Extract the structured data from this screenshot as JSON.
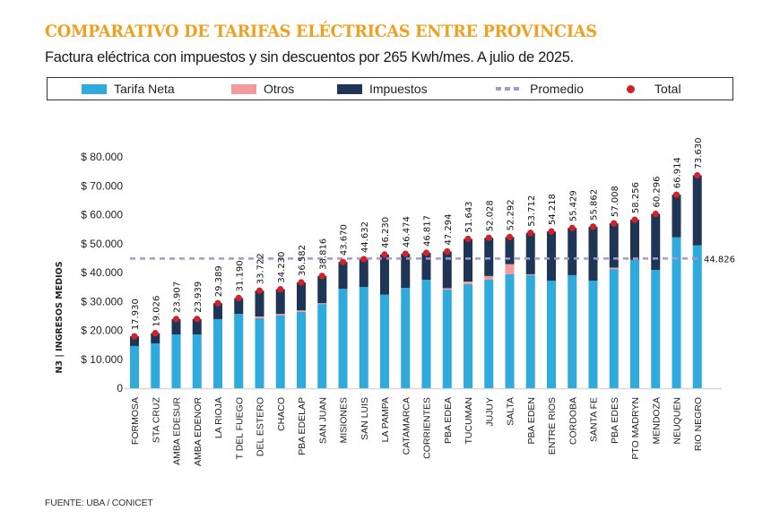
{
  "header": {
    "title": "COMPARATIVO DE TARIFAS ELÉCTRICAS ENTRE PROVINCIAS",
    "subtitle": "Factura eléctrica con impuestos y sin descuentos por 265 Kwh/mes. A julio de 2025."
  },
  "legend": [
    {
      "key": "tarifa_neta",
      "label": "Tarifa Neta",
      "color": "#2eaadc",
      "icon": "bar-swatch"
    },
    {
      "key": "otros",
      "label": "Otros",
      "color": "#f29a9e",
      "icon": "bar-swatch"
    },
    {
      "key": "impuestos",
      "label": "Impuestos",
      "color": "#1f3556",
      "icon": "bar-swatch"
    },
    {
      "key": "promedio",
      "label": "Promedio",
      "color": "#a898c8",
      "icon": "dashed-line"
    },
    {
      "key": "total",
      "label": "Total",
      "color": "#d42027",
      "icon": "dot"
    }
  ],
  "source": "FUENTE: UBA / CONICET",
  "chart_data": {
    "type": "bar",
    "stacked": true,
    "title": "COMPARATIVO DE TARIFAS ELÉCTRICAS ENTRE PROVINCIAS",
    "subtitle": "Factura eléctrica con impuestos y sin descuentos por 265 Kwh/mes. A julio de 2025.",
    "xlabel": "",
    "ylabel": "N3 | INGRESOS MEDIOS",
    "ylim": [
      0,
      80000
    ],
    "yticks": [
      0,
      10000,
      20000,
      30000,
      40000,
      50000,
      60000,
      70000,
      80000
    ],
    "ytick_labels": [
      "0",
      "$ 10.000",
      "$ 20.000",
      "$ 30.000",
      "$ 40.000",
      "$ 50.000",
      "$ 60.000",
      "$ 70.000",
      "$ 80.000"
    ],
    "grid": false,
    "legend_position": "top",
    "categories": [
      "FORMOSA",
      "STA CRUZ",
      "AMBA EDESUR",
      "AMBA EDENOR",
      "LA RIOJA",
      "T DEL FUEGO",
      "DEL ESTERO",
      "CHACO",
      "PBA EDELAP",
      "SAN JUAN",
      "MISIONES",
      "SAN LUIS",
      "LA PAMPA",
      "CATAMARCA",
      "CORRIENTES",
      "PBA EDEA",
      "TUCUMAN",
      "JUJUY",
      "SALTA",
      "PBA EDEN",
      "ENTRE RIOS",
      "CORDOBA",
      "SANTA FE",
      "PBA EDES",
      "PTO MADRYN",
      "MENDOZA",
      "NEUQUEN",
      "RIO NEGRO"
    ],
    "series": [
      {
        "name": "Tarifa Neta",
        "color": "#2eaadc",
        "values": [
          14600,
          15500,
          18600,
          18600,
          23900,
          25700,
          24200,
          25200,
          26400,
          29100,
          34400,
          35000,
          32400,
          34700,
          37500,
          34100,
          36000,
          37600,
          39400,
          39100,
          37200,
          39100,
          37200,
          41200,
          44400,
          40900,
          52200,
          49400
        ]
      },
      {
        "name": "Otros",
        "color": "#f29a9e",
        "values": [
          0,
          0,
          0,
          0,
          0,
          0,
          600,
          500,
          500,
          300,
          0,
          0,
          0,
          0,
          0,
          500,
          900,
          1200,
          3500,
          300,
          0,
          0,
          0,
          500,
          0,
          0,
          0,
          0
        ]
      },
      {
        "name": "Impuestos",
        "color": "#1f3556",
        "values": [
          3330,
          3526,
          5307,
          5339,
          5489,
          5490,
          8922,
          8530,
          9682,
          9416,
          9270,
          9632,
          13830,
          11774,
          9317,
          12694,
          14743,
          13228,
          9392,
          14312,
          17018,
          16329,
          18662,
          15308,
          13856,
          19396,
          14714,
          24230
        ]
      }
    ],
    "totals": [
      17930,
      19026,
      23907,
      23939,
      29389,
      31190,
      33722,
      34230,
      36582,
      38816,
      43670,
      44632,
      46230,
      46474,
      46817,
      47294,
      51643,
      52028,
      52292,
      53712,
      54218,
      55429,
      55862,
      57008,
      58256,
      60296,
      66914,
      73630
    ],
    "total_labels": [
      "17.930",
      "19.026",
      "23.907",
      "23.939",
      "29.389",
      "31.190",
      "33.722",
      "34.230",
      "36.582",
      "38.816",
      "43.670",
      "44.632",
      "46.230",
      "46.474",
      "46.817",
      "47.294",
      "51.643",
      "52.028",
      "52.292",
      "53.712",
      "54.218",
      "55.429",
      "55.862",
      "57.008",
      "58.256",
      "60.296",
      "66.914",
      "73.630"
    ],
    "average": {
      "name": "Promedio",
      "value": 44826,
      "label": "44.826",
      "color": "#a898c8"
    }
  }
}
